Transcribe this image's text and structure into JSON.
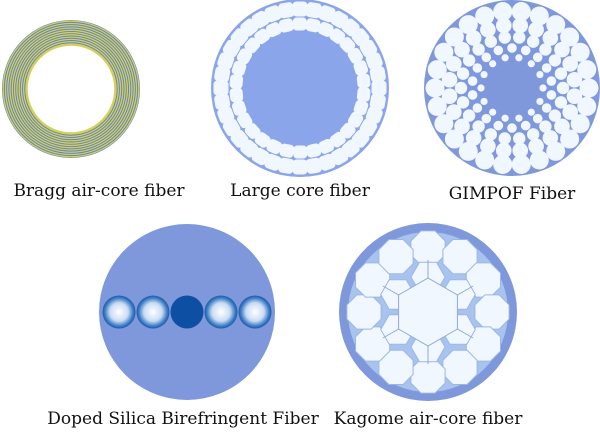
{
  "fibers": [
    {
      "id": "bragg",
      "label": "Bragg air-core fiber"
    },
    {
      "id": "large-core",
      "label": "Large core fiber"
    },
    {
      "id": "gimpof",
      "label": "GIMPOF Fiber"
    },
    {
      "id": "doped-silica",
      "label": "Doped Silica Birefringent Fiber"
    },
    {
      "id": "kagome",
      "label": "Kagome air-core fiber"
    }
  ],
  "colors": {
    "cladding": "#7f98db",
    "cladding_light": "#8aa5ea",
    "hole": "#f1f7ff",
    "ring_yellow": "#d4d05a",
    "ring_blue": "#5f83c8",
    "core_dark": "#0d4fa3"
  }
}
